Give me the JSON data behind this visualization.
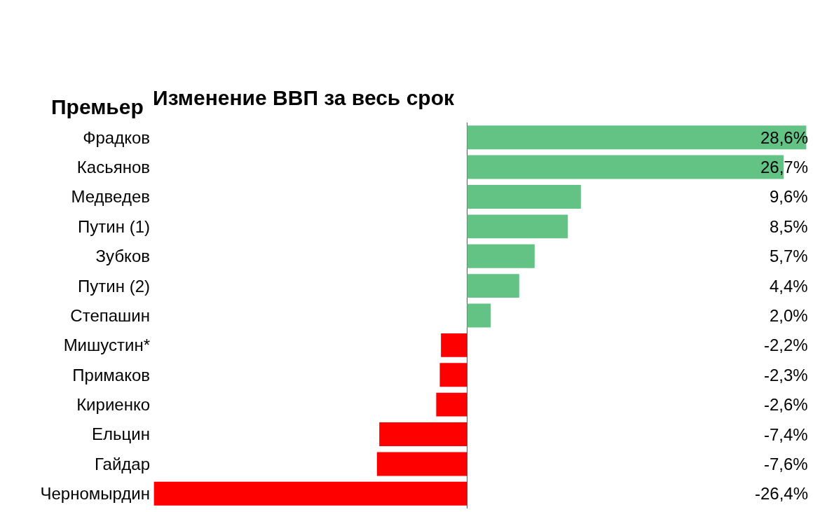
{
  "chart_data": {
    "type": "bar",
    "orientation": "horizontal",
    "title": "Изменение ВВП за весь срок",
    "ylabel": "Премьер",
    "categories": [
      "Фрадков",
      "Касьянов",
      "Медведев",
      "Путин (1)",
      "Зубков",
      "Путин (2)",
      "Степашин",
      "Мишустин*",
      "Примаков",
      "Кириенко",
      "Ельцин",
      "Гайдар",
      "Черномырдин"
    ],
    "values": [
      28.6,
      26.7,
      9.6,
      8.5,
      5.7,
      4.4,
      2.0,
      -2.2,
      -2.3,
      -2.6,
      -7.4,
      -7.6,
      -26.4
    ],
    "colors": [
      "#63c384",
      "#63c384",
      "#63c384",
      "#63c384",
      "#63c384",
      "#63c384",
      "#63c384",
      "#ff0000",
      "#ff0000",
      "#ff0000",
      "#ff0000",
      "#ff0000",
      "#ff0000"
    ],
    "value_labels": [
      "28,6%",
      "26,7%",
      "9,6%",
      "8,5%",
      "5,7%",
      "4,4%",
      "2,0%",
      "-2,2%",
      "-2,3%",
      "-2,6%",
      "-7,4%",
      "-7,6%",
      "-26,4%"
    ],
    "tick_labels": "y"
  }
}
